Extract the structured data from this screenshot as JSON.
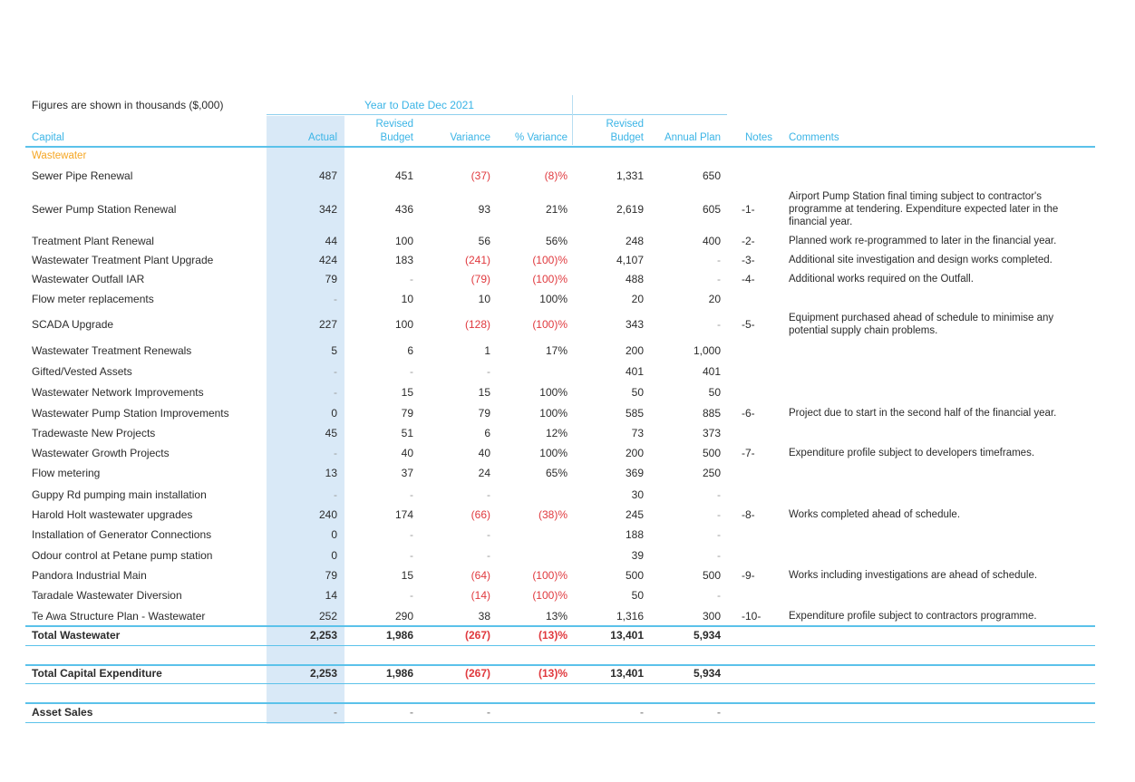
{
  "note": "Figures are shown in thousands ($,000)",
  "headers": {
    "ytd": "Year to Date Dec 2021",
    "capital": "Capital",
    "actual": "Actual",
    "revised_budget_1": "Revised",
    "revised_budget_2": "Budget",
    "variance": "Variance",
    "pct_variance": "% Variance",
    "annual_revised_1": "Revised",
    "annual_revised_2": "Budget",
    "annual_plan": "Annual Plan",
    "notes": "Notes",
    "comments": "Comments"
  },
  "section": "Wastewater",
  "rows": [
    {
      "name": "Sewer Pipe Renewal",
      "actual": "487",
      "budget": "451",
      "variance": "(37)",
      "pct": "(8)%",
      "rev": "1,331",
      "plan": "650",
      "note": "",
      "comment": ""
    },
    {
      "name": "Sewer Pump Station Renewal",
      "actual": "342",
      "budget": "436",
      "variance": "93",
      "pct": "21%",
      "rev": "2,619",
      "plan": "605",
      "note": "-1-",
      "comment": "Airport Pump Station final timing subject to contractor's programme at tendering. Expenditure expected later in the financial year."
    },
    {
      "name": "Treatment Plant Renewal",
      "actual": "44",
      "budget": "100",
      "variance": "56",
      "pct": "56%",
      "rev": "248",
      "plan": "400",
      "note": "-2-",
      "comment": "Planned work re-programmed to later in the financial year."
    },
    {
      "name": "Wastewater Treatment Plant Upgrade",
      "actual": "424",
      "budget": "183",
      "variance": "(241)",
      "pct": "(100)%",
      "rev": "4,107",
      "plan": "-",
      "note": "-3-",
      "comment": "Additional site investigation and design works completed."
    },
    {
      "name": "Wastewater Outfall IAR",
      "actual": "79",
      "budget": "-",
      "variance": "(79)",
      "pct": "(100)%",
      "rev": "488",
      "plan": "-",
      "note": "-4-",
      "comment": "Additional works required on the Outfall."
    },
    {
      "name": "Flow meter replacements",
      "actual": "-",
      "budget": "10",
      "variance": "10",
      "pct": "100%",
      "rev": "20",
      "plan": "20",
      "note": "",
      "comment": ""
    },
    {
      "name": "SCADA Upgrade",
      "actual": "227",
      "budget": "100",
      "variance": "(128)",
      "pct": "(100)%",
      "rev": "343",
      "plan": "-",
      "note": "-5-",
      "comment": "Equipment purchased ahead of schedule to minimise any potential supply chain problems."
    },
    {
      "name": "Wastewater Treatment Renewals",
      "actual": "5",
      "budget": "6",
      "variance": "1",
      "pct": "17%",
      "rev": "200",
      "plan": "1,000",
      "note": "",
      "comment": ""
    },
    {
      "name": "Gifted/Vested Assets",
      "actual": "-",
      "budget": "-",
      "variance": "-",
      "pct": "",
      "rev": "401",
      "plan": "401",
      "note": "",
      "comment": ""
    },
    {
      "name": "Wastewater Network Improvements",
      "actual": "-",
      "budget": "15",
      "variance": "15",
      "pct": "100%",
      "rev": "50",
      "plan": "50",
      "note": "",
      "comment": ""
    },
    {
      "name": "Wastewater Pump Station Improvements",
      "actual": "0",
      "budget": "79",
      "variance": "79",
      "pct": "100%",
      "rev": "585",
      "plan": "885",
      "note": "-6-",
      "comment": "Project due to start in the second half of the financial year."
    },
    {
      "name": "Tradewaste New Projects",
      "actual": "45",
      "budget": "51",
      "variance": "6",
      "pct": "12%",
      "rev": "73",
      "plan": "373",
      "note": "",
      "comment": ""
    },
    {
      "name": "Wastewater Growth Projects",
      "actual": "-",
      "budget": "40",
      "variance": "40",
      "pct": "100%",
      "rev": "200",
      "plan": "500",
      "note": "-7-",
      "comment": "Expenditure profile subject to developers timeframes."
    },
    {
      "name": "Flow metering",
      "actual": "13",
      "budget": "37",
      "variance": "24",
      "pct": "65%",
      "rev": "369",
      "plan": "250",
      "note": "",
      "comment": ""
    },
    {
      "name": "Guppy Rd pumping main installation",
      "actual": "-",
      "budget": "-",
      "variance": "-",
      "pct": "",
      "rev": "30",
      "plan": "-",
      "note": "",
      "comment": ""
    },
    {
      "name": "Harold Holt wastewater upgrades",
      "actual": "240",
      "budget": "174",
      "variance": "(66)",
      "pct": "(38)%",
      "rev": "245",
      "plan": "-",
      "note": "-8-",
      "comment": "Works completed ahead of schedule."
    },
    {
      "name": "Installation of Generator Connections",
      "actual": "0",
      "budget": "-",
      "variance": "-",
      "pct": "",
      "rev": "188",
      "plan": "-",
      "note": "",
      "comment": ""
    },
    {
      "name": "Odour control at Petane pump station",
      "actual": "0",
      "budget": "-",
      "variance": "-",
      "pct": "",
      "rev": "39",
      "plan": "-",
      "note": "",
      "comment": ""
    },
    {
      "name": "Pandora Industrial Main",
      "actual": "79",
      "budget": "15",
      "variance": "(64)",
      "pct": "(100)%",
      "rev": "500",
      "plan": "500",
      "note": "-9-",
      "comment": "Works including investigations are ahead of schedule."
    },
    {
      "name": "Taradale Wastewater Diversion",
      "actual": "14",
      "budget": "-",
      "variance": "(14)",
      "pct": "(100)%",
      "rev": "50",
      "plan": "-",
      "note": "",
      "comment": ""
    },
    {
      "name": "Te Awa Structure Plan - Wastewater",
      "actual": "252",
      "budget": "290",
      "variance": "38",
      "pct": "13%",
      "rev": "1,316",
      "plan": "300",
      "note": "-10-",
      "comment": "Expenditure profile subject to contractors programme."
    }
  ],
  "totals": [
    {
      "name": "Total Wastewater",
      "actual": "2,253",
      "budget": "1,986",
      "variance": "(267)",
      "pct": "(13)%",
      "rev": "13,401",
      "plan": "5,934"
    },
    {
      "name": "Total Capital Expenditure",
      "actual": "2,253",
      "budget": "1,986",
      "variance": "(267)",
      "pct": "(13)%",
      "rev": "13,401",
      "plan": "5,934"
    },
    {
      "name": "Asset Sales",
      "actual": "-",
      "budget": "-",
      "variance": "-",
      "pct": "",
      "rev": "-",
      "plan": "-"
    }
  ]
}
